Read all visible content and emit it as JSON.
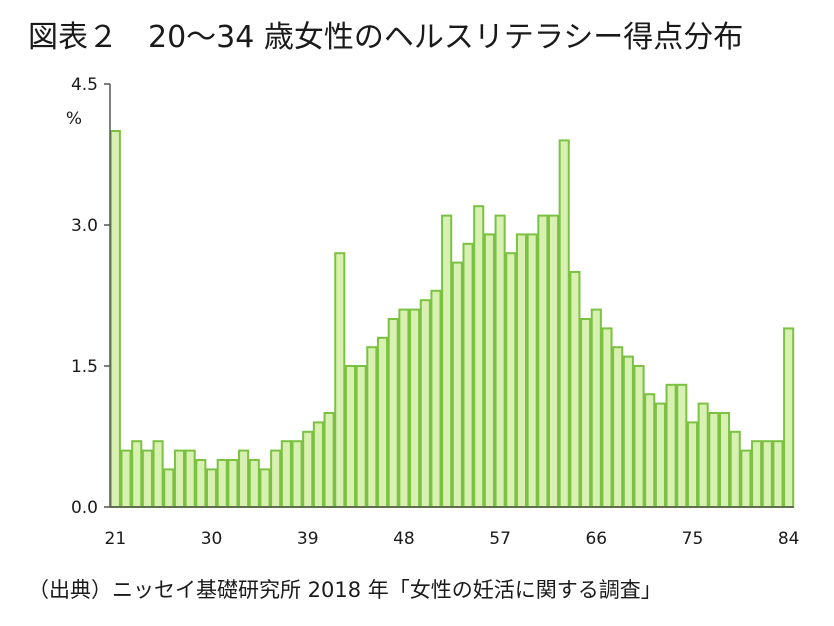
{
  "title": "図表２　20～34 歳女性のヘルスリテラシー得点分布",
  "source": "（出典）ニッセイ基礎研究所 2018 年「女性の妊活に関する調査」",
  "colors": {
    "bar_fill": "#d9f0b3",
    "bar_stroke": "#7bc142",
    "axis": "#555555"
  },
  "chart_data": {
    "type": "bar",
    "title": "図表２　20～34 歳女性のヘルスリテラシー得点分布",
    "xlabel": "",
    "ylabel": "%",
    "ylim": [
      0,
      4.5
    ],
    "yticks": [
      "0.0",
      "1.5",
      "3.0",
      "4.5"
    ],
    "xticks": [
      "21",
      "30",
      "39",
      "48",
      "57",
      "66",
      "75",
      "84"
    ],
    "grid": false,
    "categories": [
      21,
      22,
      23,
      24,
      25,
      26,
      27,
      28,
      29,
      30,
      31,
      32,
      33,
      34,
      35,
      36,
      37,
      38,
      39,
      40,
      41,
      42,
      43,
      44,
      45,
      46,
      47,
      48,
      49,
      50,
      51,
      52,
      53,
      54,
      55,
      56,
      57,
      58,
      59,
      60,
      61,
      62,
      63,
      64,
      65,
      66,
      67,
      68,
      69,
      70,
      71,
      72,
      73,
      74,
      75,
      76,
      77,
      78,
      79,
      80,
      81,
      82,
      83,
      84
    ],
    "values": [
      4.0,
      0.6,
      0.7,
      0.6,
      0.7,
      0.4,
      0.6,
      0.6,
      0.5,
      0.4,
      0.5,
      0.5,
      0.6,
      0.5,
      0.4,
      0.6,
      0.7,
      0.7,
      0.8,
      0.9,
      1.0,
      2.7,
      1.5,
      1.5,
      1.7,
      1.8,
      2.0,
      2.1,
      2.1,
      2.2,
      2.3,
      3.1,
      2.6,
      2.8,
      3.2,
      2.9,
      3.1,
      2.7,
      2.9,
      2.9,
      3.1,
      3.1,
      3.9,
      2.5,
      2.0,
      2.1,
      1.9,
      1.7,
      1.6,
      1.5,
      1.2,
      1.1,
      1.3,
      1.3,
      0.9,
      1.1,
      1.0,
      1.0,
      0.8,
      0.6,
      0.7,
      0.7,
      0.7,
      1.9
    ]
  }
}
